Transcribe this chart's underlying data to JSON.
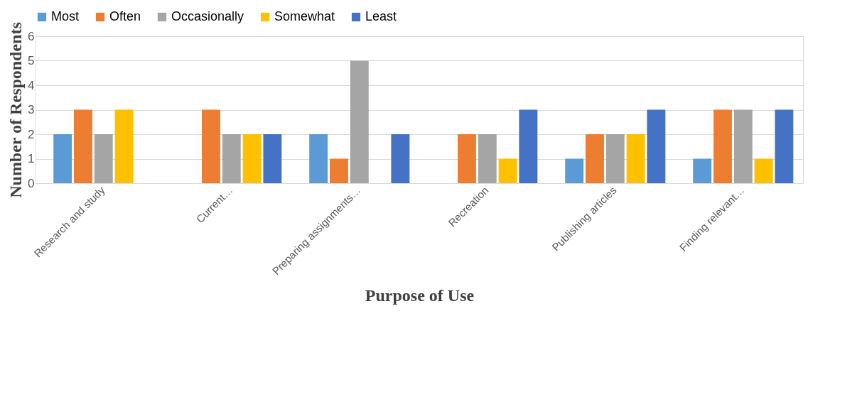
{
  "chart_data": {
    "type": "bar",
    "xlabel": "Purpose of Use",
    "ylabel": "Number of Respondents",
    "categories": [
      "Research and study",
      "Current…",
      "Preparing assignments…",
      "Recreation",
      "Publishing articles",
      "Finding relevant…"
    ],
    "series": [
      {
        "name": "Most",
        "color": "#5b9bd5",
        "values": [
          2,
          0,
          2,
          0,
          1,
          1
        ]
      },
      {
        "name": "Often",
        "color": "#ed7d31",
        "values": [
          3,
          3,
          1,
          2,
          2,
          3
        ]
      },
      {
        "name": "Occasionally",
        "color": "#a5a5a5",
        "values": [
          2,
          2,
          5,
          2,
          2,
          3
        ]
      },
      {
        "name": "Somewhat",
        "color": "#ffc000",
        "values": [
          3,
          2,
          0,
          1,
          2,
          1
        ]
      },
      {
        "name": "Least",
        "color": "#4472c4",
        "values": [
          0,
          2,
          2,
          3,
          3,
          3
        ]
      }
    ],
    "ylim": [
      0,
      6
    ],
    "yticks": [
      0,
      1,
      2,
      3,
      4,
      5,
      6
    ],
    "grid": "y",
    "legend": "top"
  }
}
